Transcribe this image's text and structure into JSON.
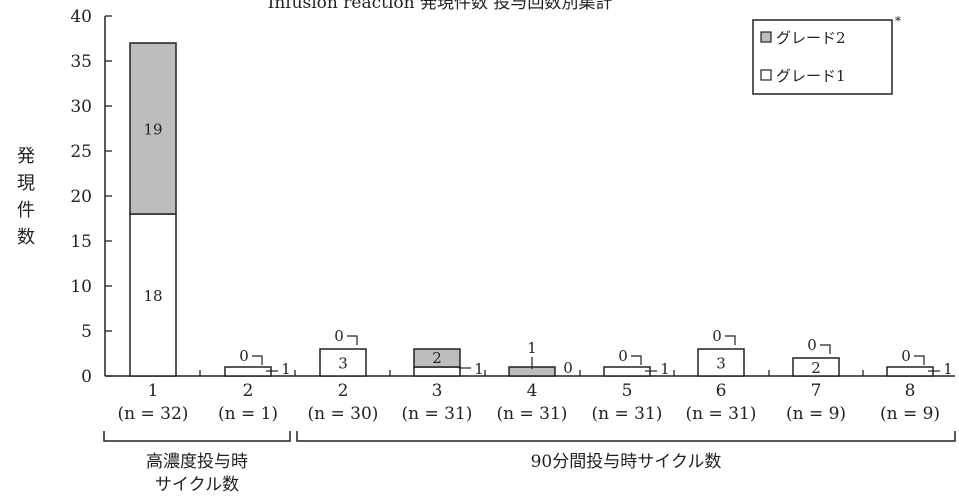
{
  "chart_data": {
    "type": "bar",
    "stacked": true,
    "title": "Infusion reaction 発現件数 投与回数別集計",
    "ylabel": "発現件数",
    "ylabel_chars": [
      "発",
      "現",
      "件",
      "数"
    ],
    "ylim": [
      0,
      40
    ],
    "yticks": [
      "0",
      "5",
      "10",
      "15",
      "20",
      "25",
      "30",
      "35",
      "40"
    ],
    "legend_position": "top-right",
    "legend_marker": "*",
    "series": [
      {
        "name": "グレード2",
        "color": "#bdbdbd",
        "values": [
          19,
          0,
          0,
          2,
          1,
          0,
          0,
          0,
          0
        ],
        "labels": [
          "19",
          "0",
          "0",
          "2",
          "1",
          "0",
          "0",
          "0",
          "0"
        ]
      },
      {
        "name": "グレード1",
        "color": "#ffffff",
        "values": [
          18,
          1,
          3,
          1,
          0,
          1,
          3,
          2,
          1
        ],
        "labels": [
          "18",
          "1",
          "3",
          "1",
          "0",
          "1",
          "3",
          "2",
          "1"
        ]
      }
    ],
    "categories": [
      {
        "label": "1",
        "n": "(n = 32)"
      },
      {
        "label": "2",
        "n": "(n = 1)"
      },
      {
        "label": "2",
        "n": "(n = 30)"
      },
      {
        "label": "3",
        "n": "(n = 31)"
      },
      {
        "label": "4",
        "n": "(n = 31)"
      },
      {
        "label": "5",
        "n": "(n = 31)"
      },
      {
        "label": "6",
        "n": "(n = 31)"
      },
      {
        "label": "7",
        "n": "(n = 9)"
      },
      {
        "label": "8",
        "n": "(n = 9)"
      }
    ],
    "groups": [
      {
        "lines": [
          "高濃度投与時",
          "サイクル数"
        ],
        "from": 0,
        "to": 1
      },
      {
        "lines": [
          "90分間投与時サイクル数"
        ],
        "from": 2,
        "to": 8
      }
    ]
  }
}
